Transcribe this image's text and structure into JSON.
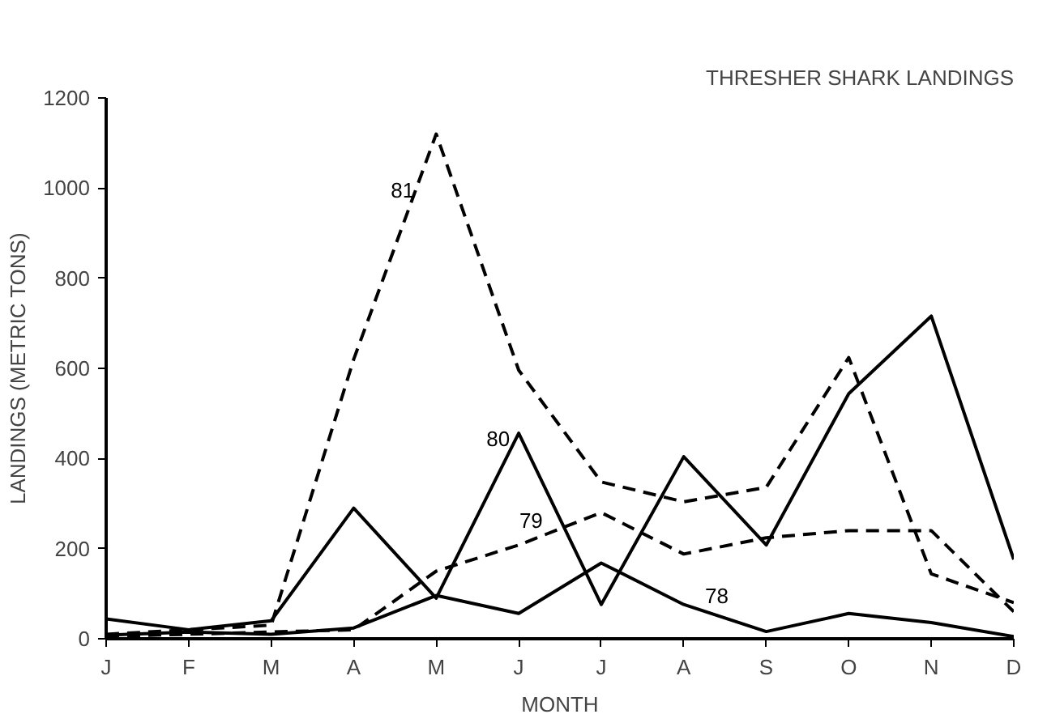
{
  "chart_data": {
    "type": "line",
    "title": "THRESHER SHARK LANDINGS",
    "xlabel": "MONTH",
    "ylabel": "LANDINGS (METRIC TONS)",
    "categories": [
      "J",
      "F",
      "M",
      "A",
      "M",
      "J",
      "J",
      "A",
      "S",
      "O",
      "N",
      "D"
    ],
    "ylim": [
      0,
      1200
    ],
    "yticks": [
      0,
      200,
      400,
      600,
      800,
      1000,
      1200
    ],
    "grid": false,
    "marker": "none",
    "series": [
      {
        "name": "78",
        "color": "#000000",
        "line_style": "solid",
        "values": [
          8,
          15,
          10,
          24,
          96,
          56,
          168,
          76,
          16,
          56,
          36,
          5
        ]
      },
      {
        "name": "79",
        "color": "#000000",
        "line_style": "dashed",
        "values": [
          5,
          10,
          15,
          20,
          150,
          208,
          280,
          188,
          224,
          240,
          240,
          60
        ]
      },
      {
        "name": "80",
        "color": "#000000",
        "line_style": "solid",
        "values": [
          44,
          20,
          40,
          290,
          90,
          456,
          76,
          404,
          208,
          544,
          716,
          176
        ]
      },
      {
        "name": "81",
        "color": "#000000",
        "line_style": "dashed",
        "values": [
          10,
          20,
          30,
          620,
          1120,
          596,
          348,
          304,
          336,
          624,
          144,
          80
        ]
      }
    ]
  }
}
